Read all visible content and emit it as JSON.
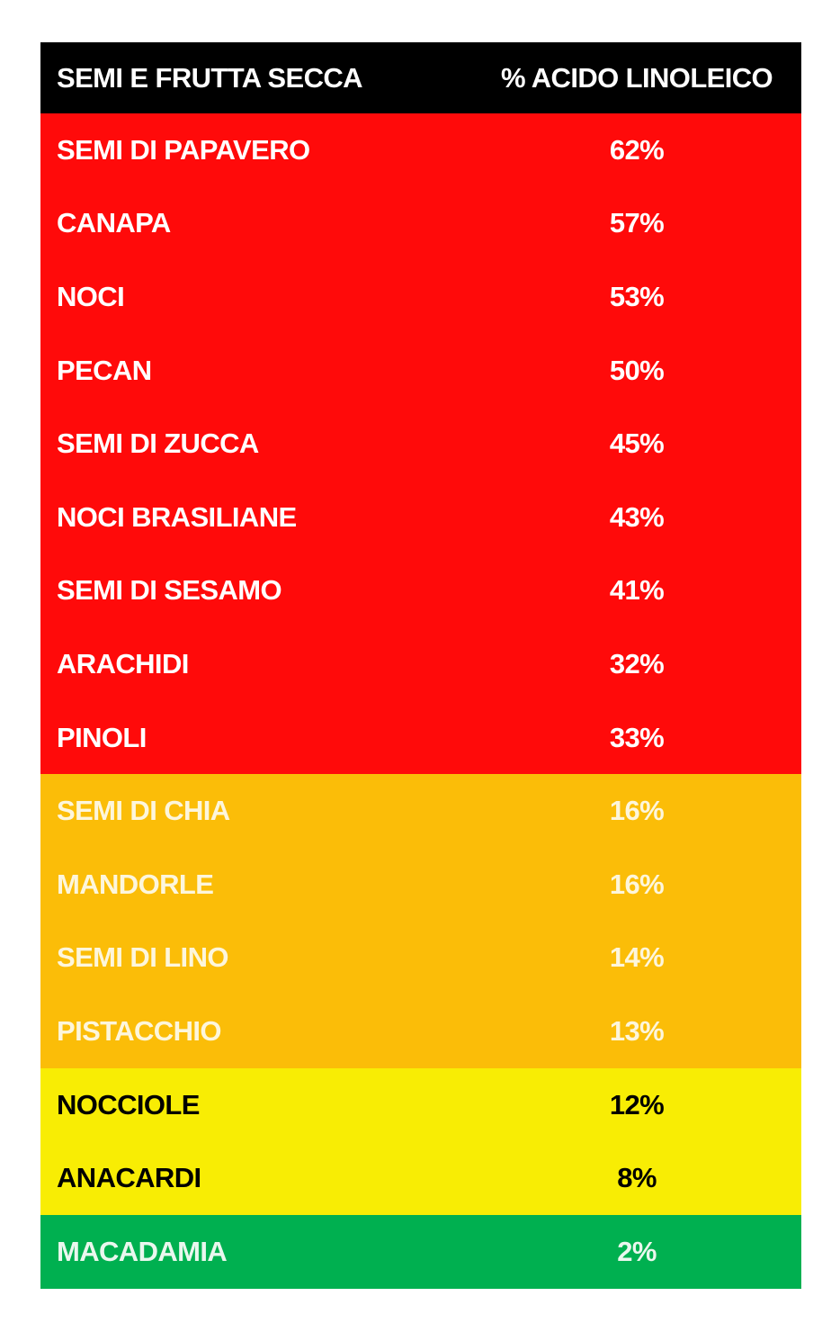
{
  "table": {
    "header": [
      "SEMI E FRUTTA SECCA",
      "% ACIDO LINOLEICO"
    ],
    "groups": [
      {
        "background": "#ff0a0a",
        "text_color": "#ffffff",
        "rows": [
          [
            "SEMI DI PAPAVERO",
            "62%"
          ],
          [
            "CANAPA",
            "57%"
          ],
          [
            "NOCI",
            "53%"
          ],
          [
            "PECAN",
            "50%"
          ],
          [
            "SEMI DI ZUCCA",
            "45%"
          ],
          [
            "NOCI BRASILIANE",
            "43%"
          ],
          [
            "SEMI DI SESAMO",
            "41%"
          ],
          [
            "ARACHIDI",
            "32%"
          ],
          [
            "PINOLI",
            "33%"
          ]
        ]
      },
      {
        "background": "#fbbd08",
        "text_color": "#fdf6dc",
        "rows": [
          [
            "SEMI DI CHIA",
            "16%"
          ],
          [
            "MANDORLE",
            "16%"
          ],
          [
            "SEMI DI LINO",
            "14%"
          ],
          [
            "PISTACCHIO",
            "13%"
          ]
        ]
      },
      {
        "background": "#f8ed04",
        "text_color": "#000000",
        "rows": [
          [
            "NOCCIOLE",
            "12%"
          ],
          [
            "ANACARDI",
            "8%"
          ]
        ]
      },
      {
        "background": "#00b050",
        "text_color": "#eaf7ee",
        "rows": [
          [
            "MACADAMIA",
            "2%"
          ]
        ]
      }
    ]
  }
}
